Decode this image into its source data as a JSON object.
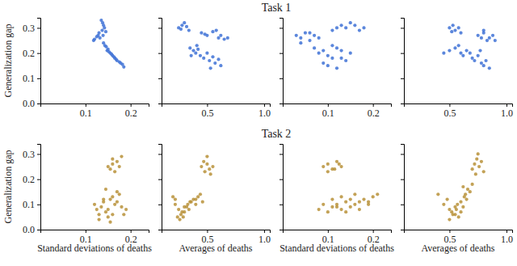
{
  "chart_data": [
    {
      "type": "scatter",
      "title": "Task 1",
      "y_label": "Generalization gap",
      "color": "#3f72d6",
      "marker": "circle",
      "xlim": [
        0,
        0.24
      ],
      "xticks": [
        0.1,
        0.2
      ],
      "ylim": [
        0,
        0.34
      ],
      "yticks": [
        {
          "value": 0,
          "label": "0.0"
        },
        0.1,
        0.2,
        0.3
      ],
      "x": [
        0.135,
        0.138,
        0.14,
        0.142,
        0.137,
        0.145,
        0.13,
        0.128,
        0.125,
        0.12,
        0.118,
        0.132,
        0.14,
        0.143,
        0.146,
        0.15,
        0.148,
        0.152,
        0.155,
        0.158,
        0.16,
        0.163,
        0.165,
        0.168,
        0.17,
        0.175,
        0.178,
        0.182,
        0.185,
        0.139
      ],
      "y": [
        0.33,
        0.32,
        0.31,
        0.3,
        0.29,
        0.285,
        0.28,
        0.27,
        0.265,
        0.255,
        0.25,
        0.26,
        0.24,
        0.23,
        0.225,
        0.215,
        0.21,
        0.205,
        0.2,
        0.195,
        0.19,
        0.185,
        0.18,
        0.175,
        0.17,
        0.165,
        0.16,
        0.155,
        0.145,
        0.27
      ]
    },
    {
      "type": "scatter",
      "color": "#3f72d6",
      "marker": "circle",
      "tick_labels": "x",
      "xlim": [
        0.1,
        1.05
      ],
      "xticks": [
        0.5,
        {
          "value": 1,
          "label": "1.0"
        }
      ],
      "ylim": [
        0,
        0.34
      ],
      "yticks": [
        0,
        0.1,
        0.2,
        0.3
      ],
      "x": [
        0.25,
        0.28,
        0.3,
        0.32,
        0.34,
        0.27,
        0.45,
        0.5,
        0.55,
        0.6,
        0.62,
        0.65,
        0.68,
        0.48,
        0.58,
        0.35,
        0.38,
        0.4,
        0.42,
        0.44,
        0.47,
        0.5,
        0.52,
        0.55,
        0.57,
        0.6,
        0.62,
        0.36,
        0.41,
        0.53
      ],
      "y": [
        0.3,
        0.31,
        0.32,
        0.305,
        0.29,
        0.295,
        0.28,
        0.27,
        0.285,
        0.26,
        0.27,
        0.255,
        0.26,
        0.275,
        0.29,
        0.22,
        0.21,
        0.2,
        0.215,
        0.19,
        0.18,
        0.2,
        0.17,
        0.185,
        0.16,
        0.175,
        0.15,
        0.19,
        0.23,
        0.14
      ]
    },
    {
      "type": "scatter",
      "color": "#3f72d6",
      "marker": "circle",
      "tick_labels": "x",
      "xlim": [
        0,
        0.24
      ],
      "xticks": [
        0.1,
        0.2
      ],
      "ylim": [
        0,
        0.34
      ],
      "yticks": [
        0,
        0.1,
        0.2,
        0.3
      ],
      "x": [
        0.03,
        0.04,
        0.05,
        0.06,
        0.07,
        0.08,
        0.11,
        0.12,
        0.13,
        0.14,
        0.15,
        0.16,
        0.07,
        0.08,
        0.09,
        0.1,
        0.11,
        0.12,
        0.13,
        0.15,
        0.14,
        0.09,
        0.1,
        0.12,
        0.04,
        0.06,
        0.17,
        0.18,
        0.13,
        0.11
      ],
      "y": [
        0.27,
        0.26,
        0.28,
        0.25,
        0.27,
        0.26,
        0.29,
        0.3,
        0.31,
        0.3,
        0.32,
        0.31,
        0.22,
        0.2,
        0.21,
        0.19,
        0.23,
        0.22,
        0.18,
        0.2,
        0.17,
        0.16,
        0.15,
        0.14,
        0.24,
        0.28,
        0.29,
        0.3,
        0.21,
        0.18
      ]
    },
    {
      "type": "scatter",
      "color": "#3f72d6",
      "marker": "circle",
      "tick_labels": "x",
      "xlim": [
        0.1,
        1.05
      ],
      "xticks": [
        0.5,
        {
          "value": 1,
          "label": "1.0"
        }
      ],
      "ylim": [
        0,
        0.34
      ],
      "yticks": [
        0,
        0.1,
        0.2,
        0.3
      ],
      "x": [
        0.5,
        0.53,
        0.55,
        0.58,
        0.6,
        0.52,
        0.75,
        0.78,
        0.8,
        0.83,
        0.85,
        0.88,
        0.9,
        0.8,
        0.45,
        0.5,
        0.55,
        0.6,
        0.62,
        0.65,
        0.7,
        0.72,
        0.75,
        0.78,
        0.8,
        0.82,
        0.85,
        0.68,
        0.58,
        0.77
      ],
      "y": [
        0.3,
        0.31,
        0.29,
        0.3,
        0.28,
        0.285,
        0.27,
        0.26,
        0.28,
        0.25,
        0.26,
        0.27,
        0.25,
        0.29,
        0.2,
        0.21,
        0.22,
        0.2,
        0.19,
        0.21,
        0.18,
        0.17,
        0.19,
        0.16,
        0.15,
        0.17,
        0.14,
        0.2,
        0.23,
        0.21
      ]
    },
    {
      "type": "scatter",
      "title": "Task 2",
      "y_label": "Generalization gap",
      "x_label": "Standard deviations of deaths",
      "color": "#b8923a",
      "marker": "circle",
      "xlim": [
        0,
        0.24
      ],
      "xticks": [
        0.1,
        0.2
      ],
      "ylim": [
        0,
        0.34
      ],
      "yticks": [
        {
          "value": 0,
          "label": "0.0"
        },
        0.1,
        0.2,
        0.3
      ],
      "x": [
        0.15,
        0.155,
        0.16,
        0.165,
        0.17,
        0.175,
        0.18,
        0.16,
        0.12,
        0.125,
        0.13,
        0.135,
        0.14,
        0.145,
        0.15,
        0.155,
        0.16,
        0.165,
        0.17,
        0.175,
        0.18,
        0.185,
        0.13,
        0.14,
        0.15,
        0.16,
        0.17,
        0.145,
        0.155,
        0.19
      ],
      "y": [
        0.25,
        0.24,
        0.26,
        0.23,
        0.27,
        0.25,
        0.29,
        0.28,
        0.1,
        0.08,
        0.06,
        0.09,
        0.11,
        0.07,
        0.05,
        0.12,
        0.13,
        0.1,
        0.15,
        0.14,
        0.09,
        0.06,
        0.04,
        0.12,
        0.08,
        0.06,
        0.11,
        0.16,
        0.03,
        0.08
      ]
    },
    {
      "type": "scatter",
      "x_label": "Averages of deaths",
      "color": "#b8923a",
      "marker": "circle",
      "tick_labels": "x",
      "xlim": [
        0.1,
        1.05
      ],
      "xticks": [
        0.5,
        {
          "value": 1,
          "label": "1.0"
        }
      ],
      "ylim": [
        0,
        0.34
      ],
      "yticks": [
        0,
        0.1,
        0.2,
        0.3
      ],
      "x": [
        0.45,
        0.47,
        0.5,
        0.52,
        0.48,
        0.5,
        0.53,
        0.55,
        0.2,
        0.22,
        0.25,
        0.27,
        0.3,
        0.32,
        0.35,
        0.38,
        0.4,
        0.42,
        0.24,
        0.26,
        0.28,
        0.3,
        0.33,
        0.36,
        0.4,
        0.44,
        0.22,
        0.34,
        0.46,
        0.29
      ],
      "y": [
        0.25,
        0.27,
        0.29,
        0.24,
        0.23,
        0.26,
        0.22,
        0.25,
        0.13,
        0.1,
        0.08,
        0.06,
        0.07,
        0.09,
        0.11,
        0.12,
        0.1,
        0.13,
        0.05,
        0.04,
        0.07,
        0.09,
        0.1,
        0.11,
        0.12,
        0.14,
        0.12,
        0.08,
        0.11,
        0.05
      ]
    },
    {
      "type": "scatter",
      "x_label": "Standard deviations of deaths",
      "color": "#b8923a",
      "marker": "circle",
      "tick_labels": "x",
      "xlim": [
        0,
        0.24
      ],
      "xticks": [
        0.1,
        0.2
      ],
      "ylim": [
        0,
        0.34
      ],
      "yticks": [
        0,
        0.1,
        0.2,
        0.3
      ],
      "x": [
        0.09,
        0.1,
        0.11,
        0.12,
        0.13,
        0.1,
        0.115,
        0.125,
        0.08,
        0.09,
        0.1,
        0.11,
        0.12,
        0.13,
        0.14,
        0.15,
        0.16,
        0.17,
        0.18,
        0.19,
        0.2,
        0.21,
        0.11,
        0.13,
        0.15,
        0.17,
        0.19,
        0.14,
        0.16,
        0.12
      ],
      "y": [
        0.25,
        0.26,
        0.24,
        0.27,
        0.25,
        0.23,
        0.24,
        0.26,
        0.08,
        0.1,
        0.07,
        0.09,
        0.1,
        0.08,
        0.11,
        0.09,
        0.1,
        0.08,
        0.12,
        0.11,
        0.13,
        0.14,
        0.12,
        0.13,
        0.12,
        0.11,
        0.1,
        0.07,
        0.14,
        0.09
      ]
    },
    {
      "type": "scatter",
      "x_label": "Averages of deaths",
      "color": "#b8923a",
      "marker": "circle",
      "tick_labels": "x",
      "xlim": [
        0.1,
        1.05
      ],
      "xticks": [
        0.5,
        {
          "value": 1,
          "label": "1.0"
        }
      ],
      "ylim": [
        0,
        0.34
      ],
      "yticks": [
        0,
        0.1,
        0.2,
        0.3
      ],
      "x": [
        0.7,
        0.72,
        0.74,
        0.76,
        0.78,
        0.8,
        0.73,
        0.75,
        0.4,
        0.45,
        0.5,
        0.52,
        0.55,
        0.58,
        0.6,
        0.62,
        0.65,
        0.68,
        0.5,
        0.53,
        0.56,
        0.6,
        0.63,
        0.66,
        0.7,
        0.48,
        0.57,
        0.62,
        0.55,
        0.64
      ],
      "y": [
        0.24,
        0.26,
        0.28,
        0.25,
        0.27,
        0.23,
        0.22,
        0.3,
        0.14,
        0.1,
        0.08,
        0.07,
        0.06,
        0.05,
        0.07,
        0.09,
        0.12,
        0.15,
        0.04,
        0.06,
        0.08,
        0.11,
        0.13,
        0.16,
        0.18,
        0.12,
        0.1,
        0.17,
        0.09,
        0.14
      ]
    }
  ]
}
